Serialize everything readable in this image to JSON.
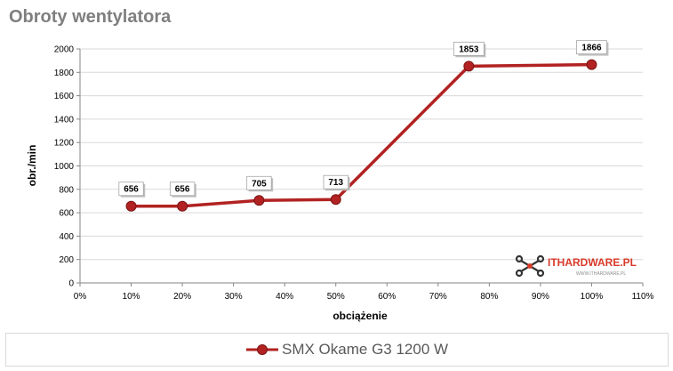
{
  "chart_data": {
    "type": "line",
    "title": "Obroty wentylatora",
    "xlabel": "obciążenie",
    "ylabel": "obr./min",
    "xlim": [
      0,
      110
    ],
    "ylim": [
      0,
      2000
    ],
    "x_ticks": [
      "0%",
      "10%",
      "20%",
      "30%",
      "40%",
      "50%",
      "60%",
      "70%",
      "80%",
      "90%",
      "100%",
      "110%"
    ],
    "y_ticks": [
      "0",
      "200",
      "400",
      "600",
      "800",
      "1000",
      "1200",
      "1400",
      "1600",
      "1800",
      "2000"
    ],
    "grid": "horizontal",
    "legend_position": "bottom",
    "series": [
      {
        "name": "SMX Okame G3 1200 W",
        "color": "#b22222",
        "x": [
          10,
          20,
          35,
          50,
          76,
          100
        ],
        "y": [
          656,
          656,
          705,
          713,
          1853,
          1866
        ],
        "labels": [
          "656",
          "656",
          "705",
          "713",
          "1853",
          "1866"
        ]
      }
    ]
  },
  "watermark": {
    "text": "ITHARDWARE.PL",
    "subtext": "WWW.ITHARDWARE.PL",
    "logo": "ithardware-logo"
  }
}
